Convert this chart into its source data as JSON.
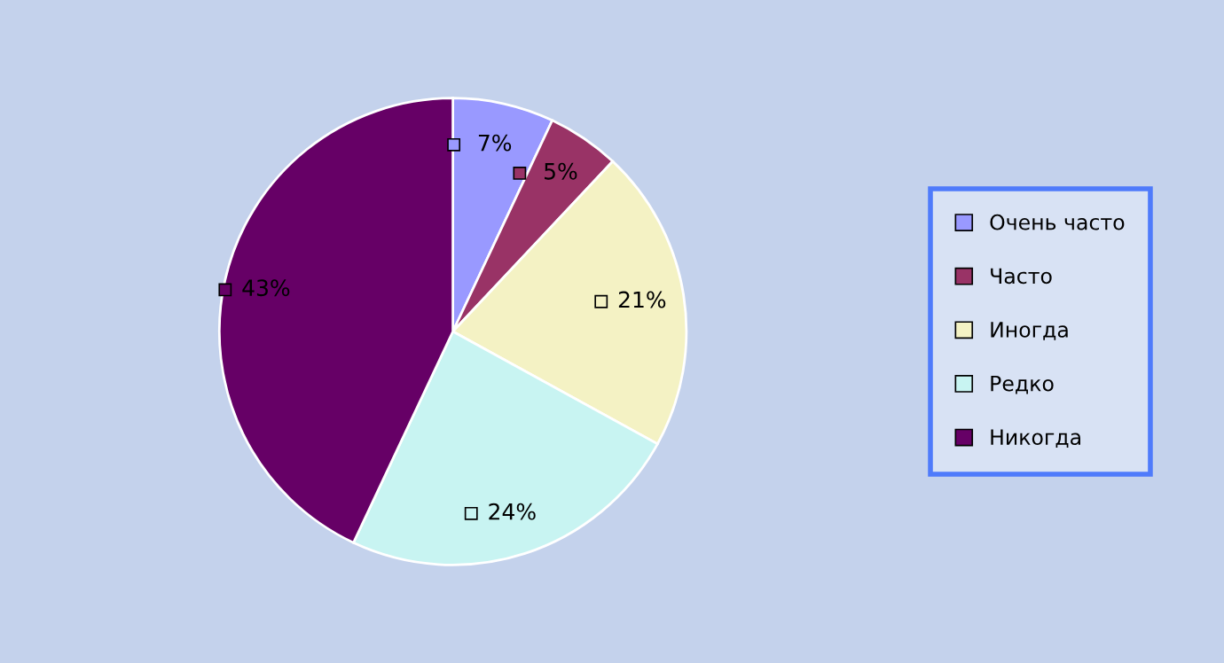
{
  "chart_data": {
    "type": "pie",
    "categories": [
      "Очень часто",
      "Часто",
      "Иногда",
      "Редко",
      "Никогда"
    ],
    "values": [
      7,
      5,
      21,
      24,
      43
    ],
    "colors": [
      "#9999ff",
      "#993366",
      "#f4f2c4",
      "#c8f4f2",
      "#660066"
    ],
    "value_labels": [
      "7%",
      "5%",
      "21%",
      "24%",
      "43%"
    ],
    "legend": "right"
  }
}
